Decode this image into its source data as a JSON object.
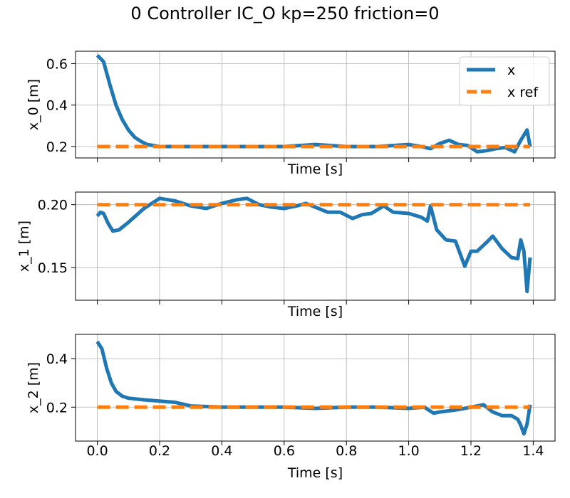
{
  "title": "0 Controller IC_O kp=250 friction=0",
  "colors": {
    "series_x": "#1f77b4",
    "series_x_ref": "#ff7f0e",
    "grid": "#b0b0b0"
  },
  "chart_data": [
    {
      "type": "line",
      "xlabel": "Time [s]",
      "ylabel": "x_0 [m]",
      "xlim": [
        -0.07,
        1.47
      ],
      "ylim": [
        0.145,
        0.66
      ],
      "xticks": [
        0.0,
        0.2,
        0.4,
        0.6,
        0.8,
        1.0,
        1.2,
        1.4
      ],
      "xticklabels": [],
      "yticks": [
        0.2,
        0.4,
        0.6
      ],
      "yticklabels": [
        "0.2",
        "0.4",
        "0.6"
      ],
      "grid": true,
      "legend": {
        "placement": "top-right",
        "entries": [
          "x",
          "x ref"
        ]
      },
      "series": [
        {
          "name": "x",
          "style": "solid",
          "x": [
            0,
            0.02,
            0.04,
            0.06,
            0.08,
            0.1,
            0.12,
            0.14,
            0.16,
            0.2,
            0.3,
            0.4,
            0.5,
            0.6,
            0.7,
            0.8,
            0.9,
            1.0,
            1.04,
            1.07,
            1.1,
            1.13,
            1.16,
            1.19,
            1.22,
            1.25,
            1.28,
            1.31,
            1.34,
            1.36,
            1.38,
            1.39
          ],
          "y": [
            0.64,
            0.61,
            0.5,
            0.4,
            0.33,
            0.28,
            0.245,
            0.225,
            0.21,
            0.2,
            0.2,
            0.2,
            0.2,
            0.2,
            0.21,
            0.2,
            0.2,
            0.21,
            0.2,
            0.19,
            0.215,
            0.23,
            0.21,
            0.205,
            0.175,
            0.18,
            0.19,
            0.195,
            0.175,
            0.23,
            0.28,
            0.2
          ]
        },
        {
          "name": "x ref",
          "style": "dashed",
          "x": [
            0,
            1.39
          ],
          "y": [
            0.2,
            0.2
          ]
        }
      ]
    },
    {
      "type": "line",
      "xlabel": "Time [s]",
      "ylabel": "x_1 [m]",
      "xlim": [
        -0.07,
        1.47
      ],
      "ylim": [
        0.124,
        0.21
      ],
      "xticks": [
        0.0,
        0.2,
        0.4,
        0.6,
        0.8,
        1.0,
        1.2,
        1.4
      ],
      "xticklabels": [],
      "yticks": [
        0.15,
        0.2
      ],
      "yticklabels": [
        "0.15",
        "0.20"
      ],
      "grid": true,
      "series": [
        {
          "name": "x",
          "style": "solid",
          "x": [
            0,
            0.01,
            0.02,
            0.035,
            0.05,
            0.07,
            0.1,
            0.15,
            0.2,
            0.25,
            0.3,
            0.35,
            0.4,
            0.45,
            0.48,
            0.52,
            0.56,
            0.6,
            0.64,
            0.67,
            0.7,
            0.74,
            0.78,
            0.82,
            0.85,
            0.88,
            0.92,
            0.95,
            1.0,
            1.04,
            1.06,
            1.07,
            1.09,
            1.12,
            1.15,
            1.18,
            1.2,
            1.22,
            1.25,
            1.27,
            1.3,
            1.33,
            1.35,
            1.36,
            1.37,
            1.38,
            1.39
          ],
          "y": [
            0.191,
            0.194,
            0.193,
            0.185,
            0.179,
            0.18,
            0.186,
            0.197,
            0.205,
            0.203,
            0.199,
            0.197,
            0.201,
            0.204,
            0.205,
            0.2,
            0.198,
            0.197,
            0.199,
            0.201,
            0.198,
            0.194,
            0.194,
            0.189,
            0.192,
            0.193,
            0.199,
            0.194,
            0.193,
            0.19,
            0.187,
            0.199,
            0.18,
            0.172,
            0.171,
            0.151,
            0.163,
            0.163,
            0.17,
            0.175,
            0.165,
            0.158,
            0.157,
            0.172,
            0.163,
            0.131,
            0.158
          ]
        },
        {
          "name": "x ref",
          "style": "dashed",
          "x": [
            0,
            1.39
          ],
          "y": [
            0.2,
            0.2
          ]
        }
      ]
    },
    {
      "type": "line",
      "xlabel": "Time [s]",
      "ylabel": "x_2 [m]",
      "xlim": [
        -0.07,
        1.47
      ],
      "ylim": [
        0.06,
        0.5
      ],
      "xticks": [
        0.0,
        0.2,
        0.4,
        0.6,
        0.8,
        1.0,
        1.2,
        1.4
      ],
      "xticklabels": [
        "0.0",
        "0.2",
        "0.4",
        "0.6",
        "0.8",
        "1.0",
        "1.2",
        "1.4"
      ],
      "yticks": [
        0.2,
        0.4
      ],
      "yticklabels": [
        "0.2",
        "0.4"
      ],
      "grid": true,
      "series": [
        {
          "name": "x",
          "style": "solid",
          "x": [
            0,
            0.015,
            0.03,
            0.045,
            0.06,
            0.08,
            0.1,
            0.15,
            0.2,
            0.25,
            0.3,
            0.4,
            0.5,
            0.6,
            0.7,
            0.8,
            0.9,
            1.0,
            1.05,
            1.08,
            1.1,
            1.13,
            1.16,
            1.2,
            1.24,
            1.27,
            1.3,
            1.33,
            1.35,
            1.36,
            1.37,
            1.38,
            1.39
          ],
          "y": [
            0.47,
            0.44,
            0.36,
            0.3,
            0.265,
            0.245,
            0.237,
            0.23,
            0.225,
            0.22,
            0.205,
            0.2,
            0.2,
            0.2,
            0.195,
            0.2,
            0.2,
            0.195,
            0.2,
            0.175,
            0.18,
            0.185,
            0.19,
            0.2,
            0.21,
            0.18,
            0.165,
            0.165,
            0.15,
            0.125,
            0.09,
            0.13,
            0.21
          ]
        },
        {
          "name": "x ref",
          "style": "dashed",
          "x": [
            0,
            1.39
          ],
          "y": [
            0.2,
            0.2
          ]
        }
      ]
    }
  ]
}
